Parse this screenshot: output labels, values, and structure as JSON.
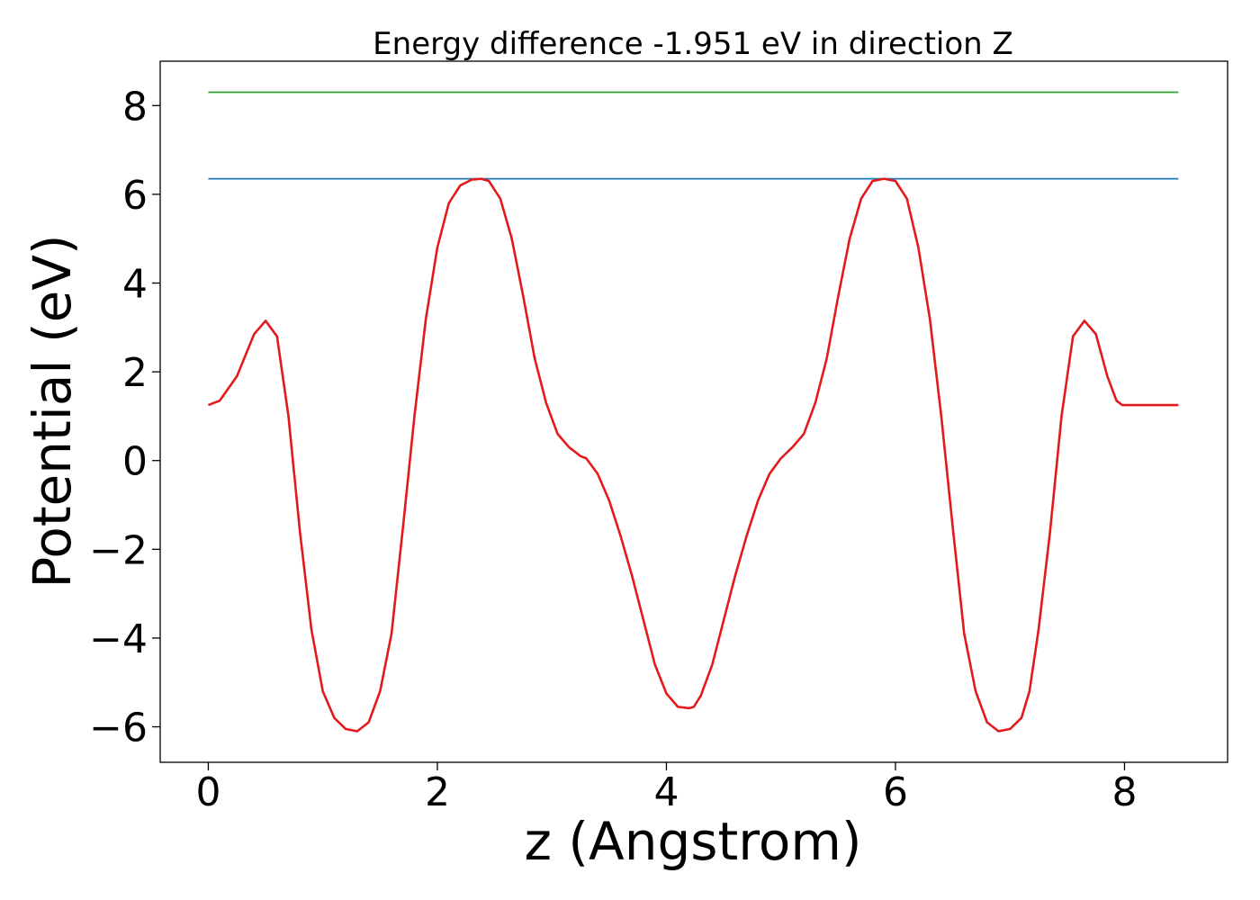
{
  "chart_data": {
    "type": "line",
    "title": "Energy difference -1.951 eV in direction Z",
    "xlabel": "z (Angstrom)",
    "ylabel": "Potential (eV)",
    "xlim": [
      -0.42,
      8.9
    ],
    "ylim": [
      -6.8,
      9.0
    ],
    "xticks": [
      0,
      2,
      4,
      6,
      8
    ],
    "yticks": [
      -6,
      -4,
      -2,
      0,
      2,
      4,
      6,
      8
    ],
    "ytick_labels": [
      "−6",
      "−4",
      "−2",
      "0",
      "2",
      "4",
      "6",
      "8"
    ],
    "grid": false,
    "series": [
      {
        "color": "#2ca02c",
        "x": [
          0,
          8.47
        ],
        "y": [
          8.3,
          8.3
        ]
      },
      {
        "color": "#1f77b4",
        "x": [
          0,
          8.47
        ],
        "y": [
          6.35,
          6.35
        ]
      },
      {
        "color": "#e31a1c",
        "x": [
          0.0,
          0.1,
          0.25,
          0.4,
          0.5,
          0.6,
          0.7,
          0.8,
          0.9,
          1.0,
          1.1,
          1.2,
          1.3,
          1.4,
          1.5,
          1.6,
          1.7,
          1.8,
          1.9,
          2.0,
          2.1,
          2.2,
          2.3,
          2.38,
          2.45,
          2.55,
          2.65,
          2.75,
          2.85,
          2.95,
          3.05,
          3.15,
          3.25,
          3.3,
          3.4,
          3.5,
          3.6,
          3.7,
          3.8,
          3.9,
          4.0,
          4.1,
          4.2,
          4.24,
          4.3,
          4.4,
          4.5,
          4.6,
          4.7,
          4.8,
          4.9,
          5.0,
          5.1,
          5.2,
          5.3,
          5.4,
          5.5,
          5.6,
          5.7,
          5.8,
          5.9,
          6.0,
          6.1,
          6.2,
          6.3,
          6.4,
          6.5,
          6.6,
          6.7,
          6.8,
          6.9,
          7.0,
          7.1,
          7.17,
          7.25,
          7.35,
          7.45,
          7.55,
          7.65,
          7.75,
          7.85,
          7.93,
          7.98,
          8.05,
          8.15,
          8.25,
          8.35,
          8.47
        ],
        "y": [
          1.25,
          1.35,
          1.9,
          2.85,
          3.15,
          2.8,
          1.0,
          -1.6,
          -3.8,
          -5.2,
          -5.8,
          -6.05,
          -6.1,
          -5.9,
          -5.2,
          -3.9,
          -1.5,
          1.0,
          3.2,
          4.8,
          5.8,
          6.2,
          6.33,
          6.35,
          6.3,
          5.9,
          5.0,
          3.7,
          2.3,
          1.3,
          0.6,
          0.3,
          0.1,
          0.05,
          -0.3,
          -0.9,
          -1.7,
          -2.6,
          -3.6,
          -4.6,
          -5.25,
          -5.55,
          -5.58,
          -5.55,
          -5.3,
          -4.6,
          -3.6,
          -2.6,
          -1.7,
          -0.9,
          -0.3,
          0.05,
          0.3,
          0.6,
          1.3,
          2.3,
          3.7,
          5.0,
          5.9,
          6.3,
          6.35,
          6.3,
          5.9,
          4.8,
          3.2,
          1.0,
          -1.5,
          -3.9,
          -5.2,
          -5.9,
          -6.1,
          -6.05,
          -5.8,
          -5.2,
          -3.8,
          -1.6,
          1.0,
          2.8,
          3.15,
          2.85,
          1.9,
          1.35,
          1.25,
          1.25,
          1.25,
          1.25,
          1.25,
          1.25
        ]
      }
    ]
  }
}
